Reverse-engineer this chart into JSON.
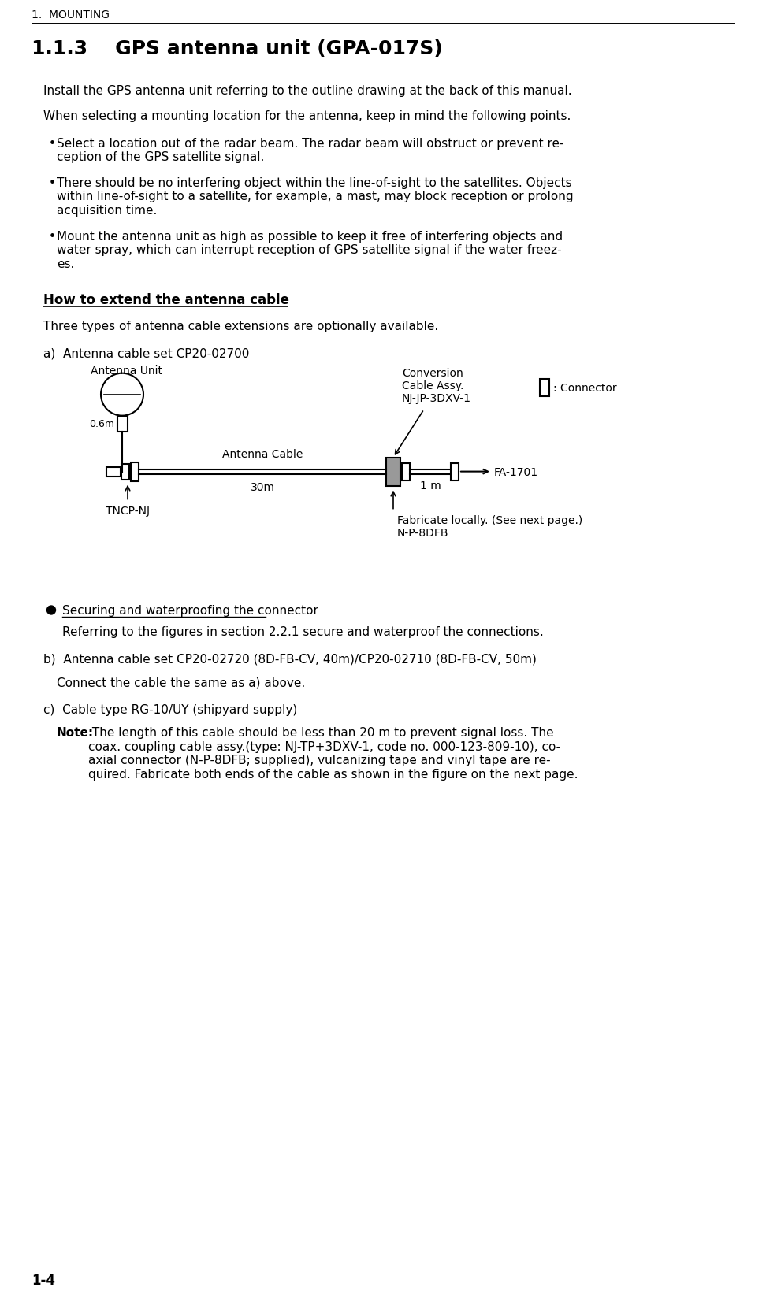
{
  "bg_color": "#ffffff",
  "header_text": "1.  MOUNTING",
  "section_title": "1.1.3    GPS antenna unit (GPA-017S)",
  "para1": "Install the GPS antenna unit referring to the outline drawing at the back of this manual.",
  "para2": "When selecting a mounting location for the antenna, keep in mind the following points.",
  "bullet1": "Select a location out of the radar beam. The radar beam will obstruct or prevent re-\nception of the GPS satellite signal.",
  "bullet2": "There should be no interfering object within the line-of-sight to the satellites. Objects\nwithin line-of-sight to a satellite, for example, a mast, may block reception or prolong\nacquisition time.",
  "bullet3": "Mount the antenna unit as high as possible to keep it free of interfering objects and\nwater spray, which can interrupt reception of GPS satellite signal if the water freez-\nes.",
  "how_to_title": "How to extend the antenna cable",
  "three_types": "Three types of antenna cable extensions are optionally available.",
  "item_a": "a)  Antenna cable set CP20-02700",
  "bullet_securing": "Securing and waterproofing the connector",
  "securing_text": "Referring to the figures in section 2.2.1 secure and waterproof the connections.",
  "item_b": "b)  Antenna cable set CP20-02720 (8D-FB-CV, 40m)/CP20-02710 (8D-FB-CV, 50m)",
  "item_b2": "Connect the cable the same as a) above.",
  "item_c": "c)  Cable type RG-10/UY (shipyard supply)",
  "item_c_note_bold": "Note:",
  "item_c_note": " The length of this cable should be less than 20 m to prevent signal loss. The\ncoax. coupling cable assy.(type: NJ-TP+3DXV-1, code no. 000-123-809-10), co-\naxial connector (N-P-8DFB; supplied), vulcanizing tape and vinyl tape are re-\nquired. Fabricate both ends of the cable as shown in the figure on the next page.",
  "footer_text": "1-4",
  "diagram_label_antenna_unit": "Antenna Unit",
  "diagram_label_06m": "0.6m",
  "diagram_label_antenna_cable": "Antenna Cable",
  "diagram_label_30m": "30m",
  "diagram_label_1m": "1 m",
  "diagram_label_conversion": "Conversion\nCable Assy.\nNJ-JP-3DXV-1",
  "diagram_label_connector": ": Connector",
  "diagram_label_fa1701": "FA-1701",
  "diagram_label_tncp": "TNCP-NJ",
  "diagram_label_fabricate": "Fabricate locally. (See next page.)\nN-P-8DFB"
}
